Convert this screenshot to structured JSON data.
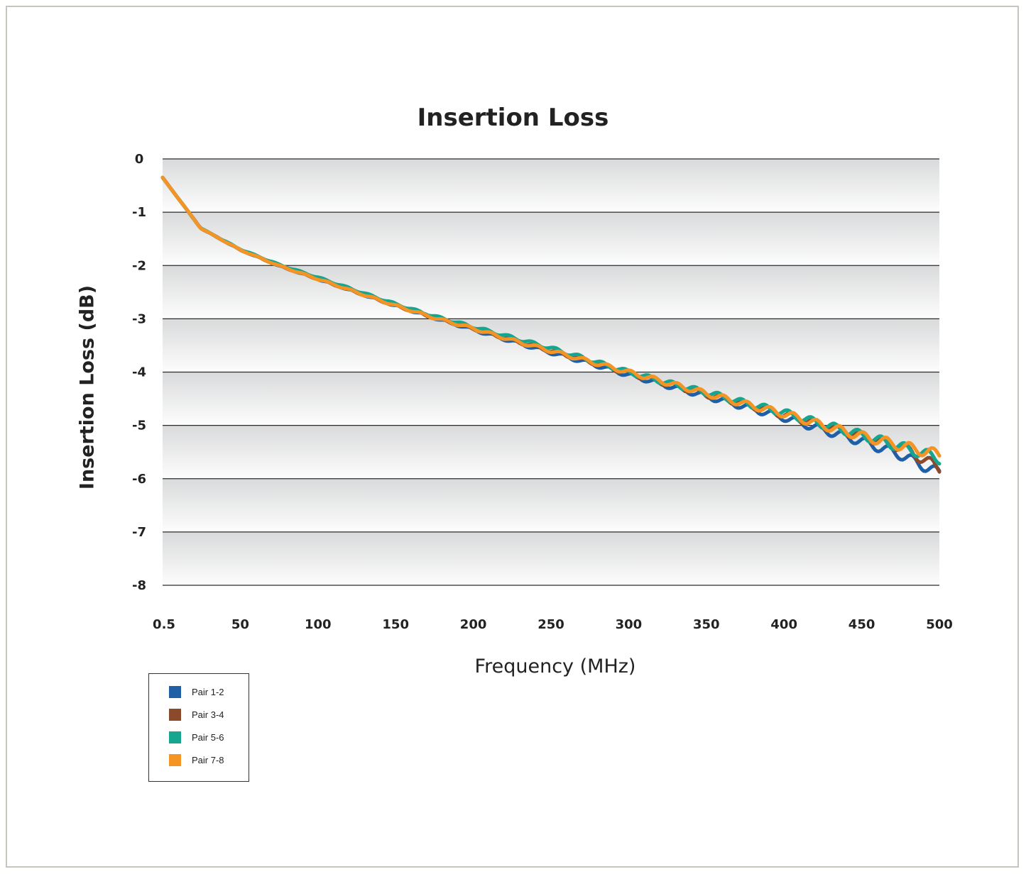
{
  "chart_data": {
    "type": "line",
    "title": "Insertion Loss",
    "xlabel": "Frequency (MHz)",
    "ylabel": "Insertion Loss (dB)",
    "xlim": [
      0.5,
      500
    ],
    "ylim": [
      -8,
      0
    ],
    "x_ticks": [
      "0.5",
      "50",
      "100",
      "150",
      "200",
      "250",
      "300",
      "350",
      "400",
      "450",
      "500"
    ],
    "y_ticks": [
      "0",
      "-1",
      "-2",
      "-3",
      "-4",
      "-5",
      "-6",
      "-7",
      "-8"
    ],
    "grid": "horizontal",
    "legend_position": "bottom-left, outside plot",
    "x": [
      0.5,
      25,
      50,
      75,
      100,
      125,
      150,
      175,
      200,
      225,
      250,
      275,
      300,
      325,
      350,
      375,
      400,
      425,
      450,
      475,
      500
    ],
    "series": [
      {
        "name": "Pair 1-2",
        "color": "#1f5fa6",
        "values": [
          -0.35,
          -1.3,
          -1.7,
          -2.0,
          -2.25,
          -2.5,
          -2.75,
          -2.98,
          -3.2,
          -3.42,
          -3.63,
          -3.83,
          -4.05,
          -4.25,
          -4.45,
          -4.65,
          -4.85,
          -5.08,
          -5.3,
          -5.55,
          -5.9
        ]
      },
      {
        "name": "Pair 3-4",
        "color": "#8b4a2b",
        "values": [
          -0.35,
          -1.3,
          -1.7,
          -2.0,
          -2.25,
          -2.5,
          -2.75,
          -2.98,
          -3.18,
          -3.4,
          -3.6,
          -3.8,
          -4.02,
          -4.22,
          -4.42,
          -4.6,
          -4.8,
          -5.0,
          -5.2,
          -5.4,
          -5.8
        ]
      },
      {
        "name": "Pair 5-6",
        "color": "#16a58f",
        "values": [
          -0.35,
          -1.3,
          -1.69,
          -1.98,
          -2.22,
          -2.47,
          -2.72,
          -2.95,
          -3.15,
          -3.35,
          -3.55,
          -3.77,
          -4.0,
          -4.2,
          -4.38,
          -4.58,
          -4.76,
          -4.98,
          -5.18,
          -5.4,
          -5.62
        ]
      },
      {
        "name": "Pair 7-8",
        "color": "#f39425",
        "values": [
          -0.35,
          -1.3,
          -1.7,
          -2.0,
          -2.25,
          -2.5,
          -2.75,
          -2.98,
          -3.18,
          -3.4,
          -3.6,
          -3.8,
          -4.0,
          -4.2,
          -4.4,
          -4.6,
          -4.78,
          -5.0,
          -5.2,
          -5.38,
          -5.55
        ]
      }
    ]
  }
}
